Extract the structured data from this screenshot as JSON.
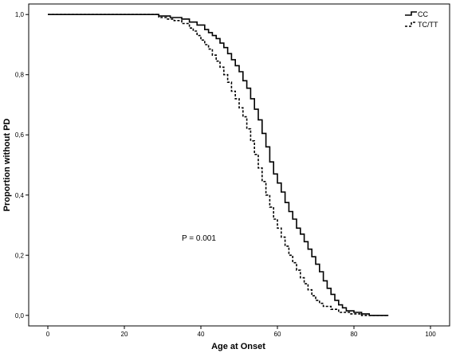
{
  "chart_data": {
    "type": "line",
    "xlabel": "Age at Onset",
    "ylabel": "Proportion without PD",
    "xlim": [
      -5,
      105
    ],
    "ylim": [
      -0.035,
      1.035
    ],
    "x_ticks": [
      "0",
      "20",
      "40",
      "60",
      "80",
      "100"
    ],
    "y_ticks": [
      "0,0",
      "0,2",
      "0,4",
      "0,6",
      "0,8",
      "1,0"
    ],
    "grid": false,
    "legend_position": "top-right",
    "annotation": "P = 0.001",
    "series": [
      {
        "name": "CC",
        "style": "solid",
        "points": [
          [
            0,
            1.0
          ],
          [
            26,
            1.0
          ],
          [
            29,
            0.995
          ],
          [
            32,
            0.99
          ],
          [
            35,
            0.985
          ],
          [
            37,
            0.975
          ],
          [
            39,
            0.965
          ],
          [
            41,
            0.95
          ],
          [
            42,
            0.94
          ],
          [
            43,
            0.93
          ],
          [
            44,
            0.92
          ],
          [
            45,
            0.905
          ],
          [
            46,
            0.89
          ],
          [
            47,
            0.87
          ],
          [
            48,
            0.85
          ],
          [
            49,
            0.83
          ],
          [
            50,
            0.81
          ],
          [
            51,
            0.78
          ],
          [
            52,
            0.755
          ],
          [
            53,
            0.72
          ],
          [
            54,
            0.685
          ],
          [
            55,
            0.65
          ],
          [
            56,
            0.605
          ],
          [
            57,
            0.56
          ],
          [
            58,
            0.51
          ],
          [
            59,
            0.47
          ],
          [
            60,
            0.44
          ],
          [
            61,
            0.41
          ],
          [
            62,
            0.375
          ],
          [
            63,
            0.345
          ],
          [
            64,
            0.32
          ],
          [
            65,
            0.29
          ],
          [
            66,
            0.27
          ],
          [
            67,
            0.245
          ],
          [
            68,
            0.22
          ],
          [
            69,
            0.195
          ],
          [
            70,
            0.17
          ],
          [
            71,
            0.145
          ],
          [
            72,
            0.115
          ],
          [
            73,
            0.09
          ],
          [
            74,
            0.07
          ],
          [
            75,
            0.05
          ],
          [
            76,
            0.035
          ],
          [
            77,
            0.025
          ],
          [
            78,
            0.015
          ],
          [
            80,
            0.01
          ],
          [
            82,
            0.005
          ],
          [
            84,
            0.0
          ],
          [
            89,
            0.0
          ]
        ]
      },
      {
        "name": "TC/TT",
        "style": "dashed",
        "points": [
          [
            0,
            1.0
          ],
          [
            26,
            1.0
          ],
          [
            29,
            0.99
          ],
          [
            31,
            0.985
          ],
          [
            33,
            0.98
          ],
          [
            35,
            0.97
          ],
          [
            37,
            0.955
          ],
          [
            38,
            0.945
          ],
          [
            39,
            0.93
          ],
          [
            40,
            0.915
          ],
          [
            41,
            0.9
          ],
          [
            42,
            0.885
          ],
          [
            43,
            0.865
          ],
          [
            44,
            0.845
          ],
          [
            45,
            0.825
          ],
          [
            46,
            0.8
          ],
          [
            47,
            0.775
          ],
          [
            48,
            0.745
          ],
          [
            49,
            0.72
          ],
          [
            50,
            0.69
          ],
          [
            51,
            0.66
          ],
          [
            52,
            0.62
          ],
          [
            53,
            0.58
          ],
          [
            54,
            0.535
          ],
          [
            55,
            0.49
          ],
          [
            56,
            0.445
          ],
          [
            57,
            0.4
          ],
          [
            58,
            0.36
          ],
          [
            59,
            0.32
          ],
          [
            60,
            0.29
          ],
          [
            61,
            0.26
          ],
          [
            62,
            0.23
          ],
          [
            63,
            0.2
          ],
          [
            64,
            0.175
          ],
          [
            65,
            0.15
          ],
          [
            66,
            0.125
          ],
          [
            67,
            0.105
          ],
          [
            68,
            0.085
          ],
          [
            69,
            0.065
          ],
          [
            70,
            0.05
          ],
          [
            71,
            0.04
          ],
          [
            72,
            0.03
          ],
          [
            74,
            0.02
          ],
          [
            76,
            0.01
          ],
          [
            79,
            0.005
          ],
          [
            82,
            0.0
          ],
          [
            89,
            0.0
          ]
        ]
      }
    ]
  }
}
